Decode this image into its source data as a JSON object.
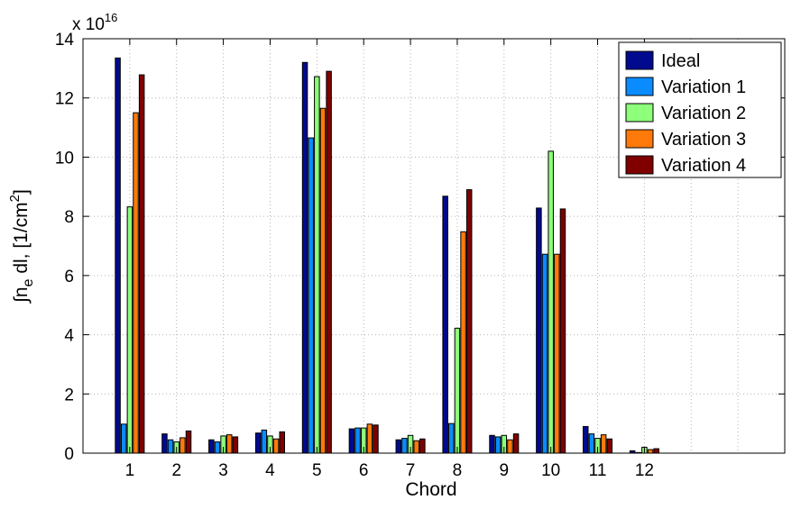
{
  "chart_data": {
    "type": "bar",
    "title": "",
    "xlabel": "Chord",
    "ylabel": {
      "prefix": "∫n",
      "sub": "e",
      "mid": " dl, [1/cm",
      "sup": "2",
      "suffix": "]"
    },
    "y_exponent": {
      "base": "x 10",
      "power": "16"
    },
    "categories": [
      "1",
      "2",
      "3",
      "4",
      "5",
      "6",
      "7",
      "8",
      "9",
      "10",
      "11",
      "12"
    ],
    "x_range": [
      0,
      15
    ],
    "ylim": [
      0,
      14
    ],
    "yticks": [
      "0",
      "2",
      "4",
      "6",
      "8",
      "10",
      "12",
      "14"
    ],
    "grid": true,
    "legend_position": "top-right",
    "series": [
      {
        "name": "Ideal",
        "color": "#000a8f",
        "values": [
          13.35,
          0.65,
          0.45,
          0.68,
          13.2,
          0.82,
          0.45,
          8.68,
          0.6,
          8.28,
          0.9,
          0.08
        ]
      },
      {
        "name": "Variation 1",
        "color": "#0a8cff",
        "values": [
          0.98,
          0.45,
          0.38,
          0.78,
          10.65,
          0.85,
          0.5,
          1.0,
          0.55,
          6.72,
          0.65,
          0.02
        ]
      },
      {
        "name": "Variation 2",
        "color": "#8dff7a",
        "values": [
          8.32,
          0.38,
          0.58,
          0.58,
          12.72,
          0.85,
          0.6,
          4.22,
          0.6,
          10.2,
          0.5,
          0.2
        ]
      },
      {
        "name": "Variation 3",
        "color": "#ff7a0a",
        "values": [
          11.5,
          0.52,
          0.62,
          0.48,
          11.65,
          0.98,
          0.42,
          7.48,
          0.45,
          6.72,
          0.62,
          0.12
        ]
      },
      {
        "name": "Variation 4",
        "color": "#800000",
        "values": [
          12.78,
          0.75,
          0.55,
          0.72,
          12.9,
          0.95,
          0.48,
          8.9,
          0.65,
          8.25,
          0.48,
          0.15
        ]
      }
    ]
  }
}
